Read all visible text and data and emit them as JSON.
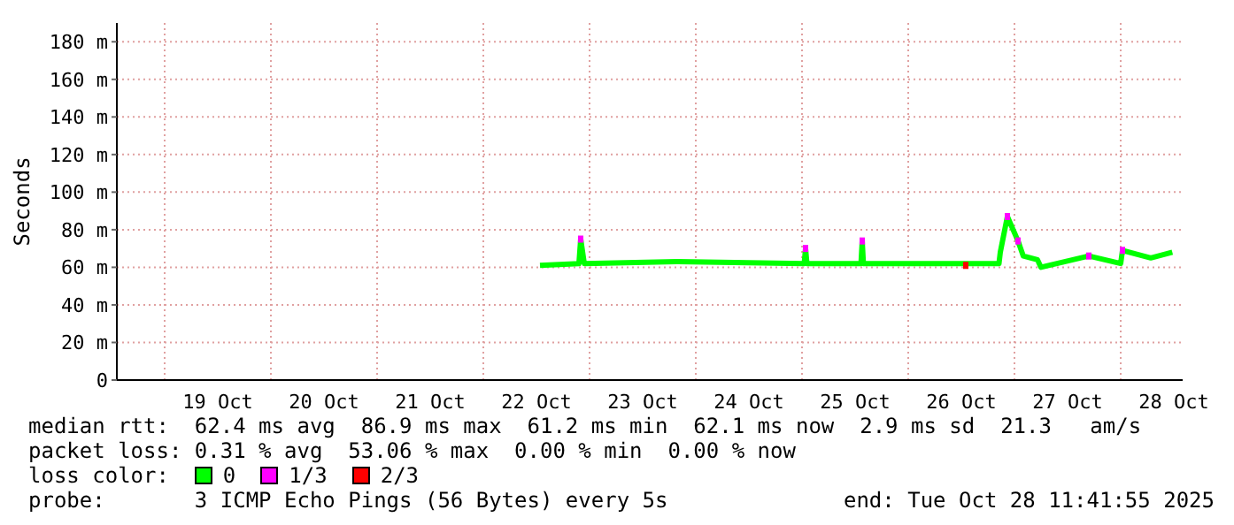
{
  "chart_data": {
    "type": "line",
    "ylabel": "Seconds",
    "legend_title": "loss color:",
    "legend": "bottom",
    "grid": true,
    "xlim": [
      "2025-10-18T13:12",
      "2025-10-28T14:00"
    ],
    "xticks": [
      {
        "value": "2025-10-19T12:00",
        "label": "19 Oct"
      },
      {
        "value": "2025-10-20T12:00",
        "label": "20 Oct"
      },
      {
        "value": "2025-10-21T12:00",
        "label": "21 Oct"
      },
      {
        "value": "2025-10-22T12:00",
        "label": "22 Oct"
      },
      {
        "value": "2025-10-23T12:00",
        "label": "23 Oct"
      },
      {
        "value": "2025-10-24T12:00",
        "label": "24 Oct"
      },
      {
        "value": "2025-10-25T12:00",
        "label": "25 Oct"
      },
      {
        "value": "2025-10-26T12:00",
        "label": "26 Oct"
      },
      {
        "value": "2025-10-27T12:00",
        "label": "27 Oct"
      },
      {
        "value": "2025-10-28T12:00",
        "label": "28 Oct"
      }
    ],
    "ylim": [
      0,
      190
    ],
    "yticks": [
      0,
      {
        "value": 20,
        "label": "20 m"
      },
      {
        "value": 40,
        "label": "40 m"
      },
      {
        "value": 60,
        "label": "60 m"
      },
      {
        "value": 80,
        "label": "80 m"
      },
      {
        "value": 100,
        "label": "100 m"
      },
      {
        "value": 120,
        "label": "120 m"
      },
      {
        "value": 140,
        "label": "140 m"
      },
      {
        "value": 160,
        "label": "160 m"
      },
      {
        "value": 180,
        "label": "180 m"
      }
    ],
    "series": [
      {
        "name": "0",
        "color": "#00ff00",
        "x": [
          "2025-10-22T12:48",
          "2025-10-22T21:36",
          "2025-10-22T22:00",
          "2025-10-22T22:48",
          "2025-10-23T20:00",
          "2025-10-25T00:30",
          "2025-10-25T00:48",
          "2025-10-25T01:06",
          "2025-10-25T13:20",
          "2025-10-25T13:36",
          "2025-10-25T13:52",
          "2025-10-26T20:30",
          "2025-10-26T20:48",
          "2025-10-26T22:24",
          "2025-10-27T00:48",
          "2025-10-27T02:00",
          "2025-10-27T05:12",
          "2025-10-27T06:00",
          "2025-10-27T16:48",
          "2025-10-28T00:00",
          "2025-10-28T00:24",
          "2025-10-28T06:48",
          "2025-10-28T11:40"
        ],
        "values": [
          61,
          62,
          75,
          62,
          63,
          62,
          70,
          62,
          62,
          74,
          62,
          62,
          68,
          87,
          74,
          66,
          64,
          60,
          66,
          62,
          69,
          65,
          68
        ]
      },
      {
        "name": "1/3",
        "type": "scatter",
        "marker": "square",
        "color": "#ff00ff",
        "x": [
          "2025-10-22T22:00",
          "2025-10-25T00:48",
          "2025-10-25T13:36",
          "2025-10-26T22:24",
          "2025-10-27T00:48",
          "2025-10-27T16:48",
          "2025-10-28T00:24"
        ],
        "values": [
          75,
          70,
          74,
          87,
          74,
          66,
          69
        ]
      },
      {
        "name": "2/3",
        "type": "scatter",
        "marker": "square",
        "color": "#ff0000",
        "x": [
          "2025-10-26T13:00"
        ],
        "values": [
          61
        ]
      }
    ],
    "annotations": [
      "median rtt:  62.4 ms avg  86.9 ms max  61.2 ms min  62.1 ms now  2.9 ms sd  21.3   am/s",
      "packet loss: 0.31 % avg  53.06 % max  0.00 % min  0.00 % now",
      "probe:       3 ICMP Echo Pings (56 Bytes) every 5s",
      "end: Tue Oct 28 11:41:55 2025"
    ]
  }
}
